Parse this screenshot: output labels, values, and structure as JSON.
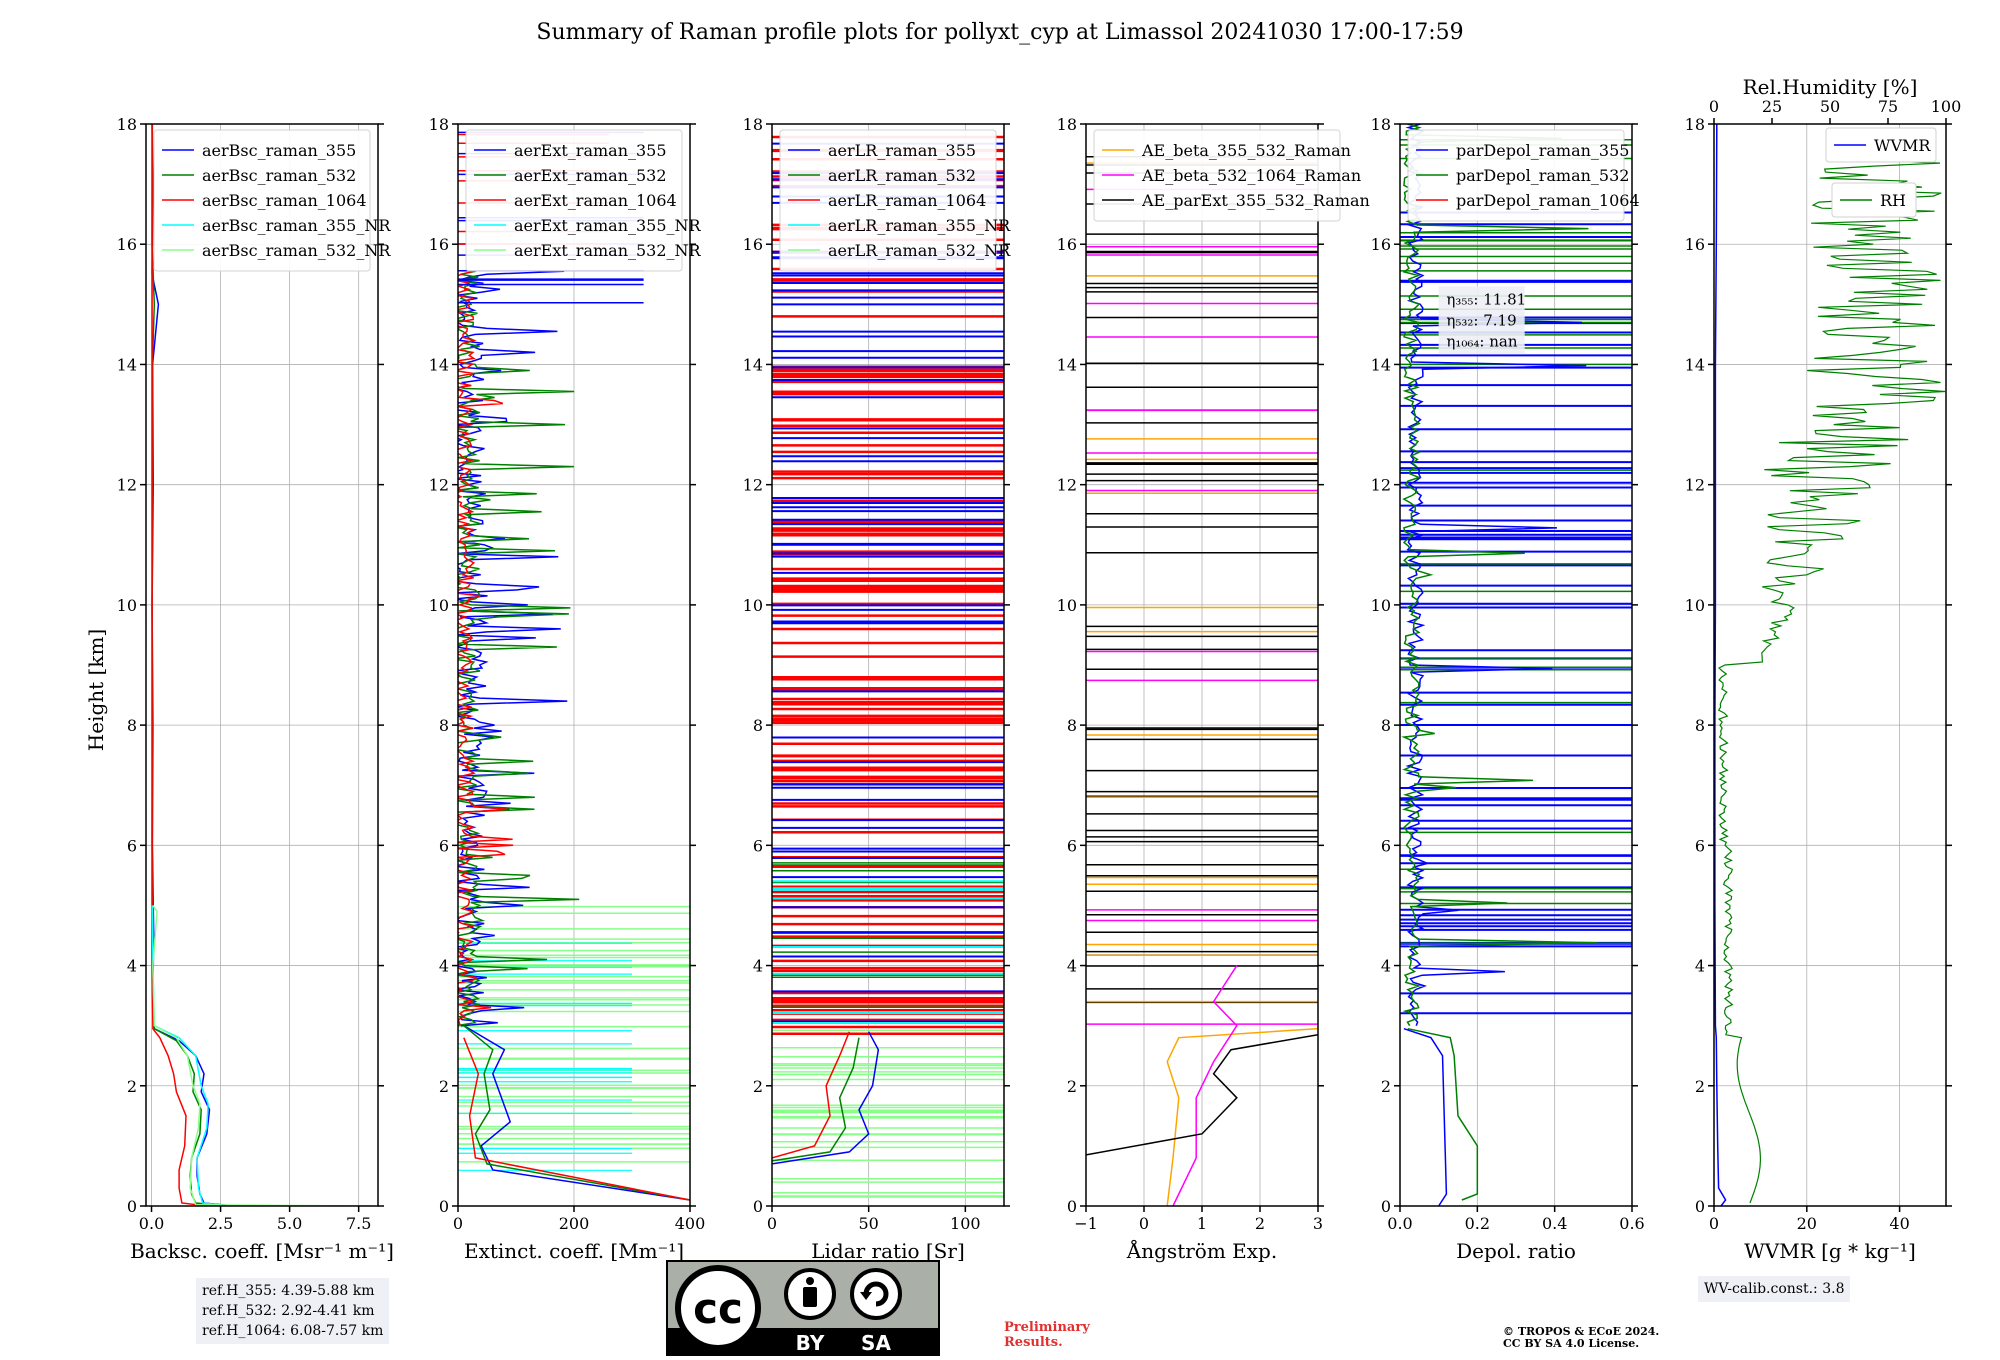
{
  "title": "Summary of Raman profile plots for pollyxt_cyp at Limassol 20241030 17:00-17:59",
  "ylabel": "Height [km]",
  "chart_data": [
    {
      "type": "line",
      "id": "backscatter",
      "xlabel": "Backsc. coeff. [Msr⁻¹ m⁻¹]",
      "xlim": [
        -0.2,
        8.2
      ],
      "xticks": [
        0.0,
        2.5,
        5.0,
        7.5
      ],
      "xticklabels": [
        "0.0",
        "2.5",
        "5.0",
        "7.5"
      ],
      "ylim": [
        0,
        18
      ],
      "yticks": [
        0,
        2,
        4,
        6,
        8,
        10,
        12,
        14,
        16,
        18
      ],
      "legend_position": "top-right",
      "series": [
        {
          "name": "aerBsc_raman_355",
          "color": "#0000ff",
          "points": [
            [
              3.0,
              0
            ],
            [
              1.9,
              0.05
            ],
            [
              1.75,
              0.2
            ],
            [
              1.65,
              0.5
            ],
            [
              1.65,
              0.8
            ],
            [
              2.0,
              1.2
            ],
            [
              2.1,
              1.6
            ],
            [
              1.8,
              1.9
            ],
            [
              1.9,
              2.2
            ],
            [
              1.6,
              2.5
            ],
            [
              1.0,
              2.75
            ],
            [
              0.1,
              2.95
            ],
            [
              0.05,
              3.5
            ],
            [
              0.08,
              4.5
            ],
            [
              0.03,
              6
            ],
            [
              0.05,
              8
            ],
            [
              0.02,
              10
            ],
            [
              0.06,
              12
            ],
            [
              0.04,
              14
            ],
            [
              0.25,
              15.0
            ],
            [
              0.02,
              15.5
            ],
            [
              0.03,
              16
            ],
            [
              0.05,
              17
            ],
            [
              0.02,
              18
            ]
          ]
        },
        {
          "name": "aerBsc_raman_532",
          "color": "#008000",
          "points": [
            [
              2.8,
              0
            ],
            [
              1.6,
              0.05
            ],
            [
              1.45,
              0.2
            ],
            [
              1.4,
              0.5
            ],
            [
              1.45,
              0.8
            ],
            [
              1.75,
              1.2
            ],
            [
              1.8,
              1.6
            ],
            [
              1.5,
              1.9
            ],
            [
              1.55,
              2.2
            ],
            [
              1.3,
              2.5
            ],
            [
              0.9,
              2.75
            ],
            [
              0.1,
              2.95
            ],
            [
              0.04,
              3.5
            ],
            [
              0.06,
              4.5
            ],
            [
              0.02,
              6
            ],
            [
              0.03,
              8
            ],
            [
              0.02,
              10
            ],
            [
              0.04,
              12
            ],
            [
              0.03,
              14
            ],
            [
              0.1,
              15.0
            ],
            [
              0.02,
              16
            ],
            [
              0.03,
              18
            ]
          ]
        },
        {
          "name": "aerBsc_raman_1064",
          "color": "#ff0000",
          "points": [
            [
              2.0,
              0
            ],
            [
              1.1,
              0.05
            ],
            [
              1.0,
              0.3
            ],
            [
              1.0,
              0.6
            ],
            [
              1.2,
              1.0
            ],
            [
              1.25,
              1.5
            ],
            [
              0.9,
              1.9
            ],
            [
              0.8,
              2.2
            ],
            [
              0.6,
              2.5
            ],
            [
              0.3,
              2.8
            ],
            [
              0.05,
              2.95
            ],
            [
              0.02,
              4
            ],
            [
              0.02,
              6
            ],
            [
              0.02,
              8
            ],
            [
              0.02,
              12
            ],
            [
              0.02,
              16
            ],
            [
              0.02,
              18
            ]
          ]
        },
        {
          "name": "aerBsc_raman_355_NR",
          "color": "#00ffff",
          "points": [
            [
              2.9,
              0
            ],
            [
              1.85,
              0.05
            ],
            [
              1.7,
              0.3
            ],
            [
              1.65,
              0.8
            ],
            [
              2.0,
              1.3
            ],
            [
              2.05,
              1.7
            ],
            [
              1.8,
              2.0
            ],
            [
              1.6,
              2.5
            ],
            [
              1.0,
              2.8
            ],
            [
              0.1,
              3.0
            ],
            [
              0.05,
              4
            ],
            [
              0.03,
              5
            ]
          ]
        },
        {
          "name": "aerBsc_raman_532_NR",
          "color": "#88ff88",
          "points": [
            [
              8.0,
              0
            ],
            [
              1.6,
              0.02
            ],
            [
              1.4,
              0.3
            ],
            [
              1.45,
              0.8
            ],
            [
              1.7,
              1.3
            ],
            [
              1.75,
              1.7
            ],
            [
              1.5,
              2.0
            ],
            [
              1.3,
              2.5
            ],
            [
              0.9,
              2.8
            ],
            [
              0.1,
              3.0
            ],
            [
              0.05,
              4
            ],
            [
              0.2,
              4.9
            ],
            [
              0.05,
              5.0
            ]
          ]
        }
      ]
    },
    {
      "type": "line",
      "id": "extinction",
      "xlabel": "Extinct. coeff. [Mm⁻¹]",
      "xlim": [
        0,
        400
      ],
      "xticks": [
        0,
        200,
        400
      ],
      "xticklabels": [
        "0",
        "200",
        "400"
      ],
      "ylim": [
        0,
        18
      ],
      "yticks": [
        0,
        2,
        4,
        6,
        8,
        10,
        12,
        14,
        16,
        18
      ],
      "legend_position": "top-right",
      "series": [
        {
          "name": "aerExt_raman_355",
          "color": "#0000ff"
        },
        {
          "name": "aerExt_raman_532",
          "color": "#008000"
        },
        {
          "name": "aerExt_raman_1064",
          "color": "#ff0000"
        },
        {
          "name": "aerExt_raman_355_NR",
          "color": "#00ffff"
        },
        {
          "name": "aerExt_raman_532_NR",
          "color": "#88ff88"
        }
      ]
    },
    {
      "type": "line",
      "id": "lidar-ratio",
      "xlabel": "Lidar ratio [Sr]",
      "xlim": [
        0,
        120
      ],
      "xticks": [
        0,
        50,
        100
      ],
      "xticklabels": [
        "0",
        "50",
        "100"
      ],
      "ylim": [
        0,
        18
      ],
      "yticks": [
        0,
        2,
        4,
        6,
        8,
        10,
        12,
        14,
        16,
        18
      ],
      "legend_position": "top-right",
      "series": [
        {
          "name": "aerLR_raman_355",
          "color": "#0000ff"
        },
        {
          "name": "aerLR_raman_532",
          "color": "#008000"
        },
        {
          "name": "aerLR_raman_1064",
          "color": "#ff0000"
        },
        {
          "name": "aerLR_raman_355_NR",
          "color": "#00ffff"
        },
        {
          "name": "aerLR_raman_532_NR",
          "color": "#88ff88"
        }
      ]
    },
    {
      "type": "line",
      "id": "angstrom",
      "xlabel": "Ångström Exp.",
      "xlim": [
        -1,
        3
      ],
      "xticks": [
        -1,
        0,
        1,
        2,
        3
      ],
      "xticklabels": [
        "−1",
        "0",
        "1",
        "2",
        "3"
      ],
      "ylim": [
        0,
        18
      ],
      "yticks": [
        0,
        2,
        4,
        6,
        8,
        10,
        12,
        14,
        16,
        18
      ],
      "legend_position": "top-right",
      "series": [
        {
          "name": "AE_beta_355_532_Raman",
          "color": "#ffa500"
        },
        {
          "name": "AE_beta_532_1064_Raman",
          "color": "#ff00ff"
        },
        {
          "name": "AE_parExt_355_532_Raman",
          "color": "#000000"
        }
      ]
    },
    {
      "type": "line",
      "id": "depol",
      "xlabel": "Depol. ratio",
      "xlim": [
        0,
        0.6
      ],
      "xticks": [
        0,
        0.2,
        0.4,
        0.6
      ],
      "xticklabels": [
        "0.0",
        "0.2",
        "0.4",
        "0.6"
      ],
      "ylim": [
        0,
        18
      ],
      "yticks": [
        0,
        2,
        4,
        6,
        8,
        10,
        12,
        14,
        16,
        18
      ],
      "legend_position": "top-right",
      "annotation": [
        "η₃₅₅: 11.81",
        "η₅₃₂: 7.19",
        "η₁₀₆₄: nan"
      ],
      "series": [
        {
          "name": "parDepol_raman_355",
          "color": "#0000ff"
        },
        {
          "name": "parDepol_raman_532",
          "color": "#008000"
        },
        {
          "name": "parDepol_raman_1064",
          "color": "#ff0000"
        }
      ]
    },
    {
      "type": "line",
      "id": "wvmr",
      "xlabel": "WVMR [g * kg⁻¹]",
      "xlim": [
        0,
        50
      ],
      "xticks": [
        0,
        20,
        40
      ],
      "xticklabels": [
        "0",
        "20",
        "40"
      ],
      "top_xlabel": "Rel.Humidity [%]",
      "top_xlim": [
        0,
        100
      ],
      "top_xticks": [
        0,
        25,
        50,
        75,
        100
      ],
      "top_xticklabels": [
        "0",
        "25",
        "50",
        "75",
        "100"
      ],
      "ylim": [
        0,
        18
      ],
      "yticks": [
        0,
        2,
        4,
        6,
        8,
        10,
        12,
        14,
        16,
        18
      ],
      "legend_position": "top-right",
      "series": [
        {
          "name": "WVMR",
          "color": "#0000ff",
          "points": [
            [
              1.5,
              0
            ],
            [
              2.5,
              0.1
            ],
            [
              1.0,
              0.3
            ],
            [
              0.8,
              1
            ],
            [
              0.6,
              2
            ],
            [
              0.5,
              2.8
            ],
            [
              0.3,
              3
            ],
            [
              0.2,
              5
            ],
            [
              0.2,
              8
            ],
            [
              0.3,
              10
            ],
            [
              0.3,
              12
            ],
            [
              0.3,
              14
            ],
            [
              0.5,
              16
            ],
            [
              0.6,
              18
            ]
          ]
        },
        {
          "name": "RH",
          "color": "#008000"
        }
      ]
    }
  ],
  "ref_heights": [
    "ref.H_355: 4.39-5.88 km",
    "ref.H_532: 2.92-4.41 km",
    "ref.H_1064: 6.08-7.57 km"
  ],
  "wv_calib": "WV-calib.const.: 3.8",
  "license_labels": {
    "cc": "cc",
    "by": "BY",
    "sa": "SA"
  },
  "preliminary": [
    "Preliminary",
    "Results."
  ],
  "copyright": [
    "© TROPOS & ECoE 2024.",
    "CC BY SA 4.0 License."
  ]
}
